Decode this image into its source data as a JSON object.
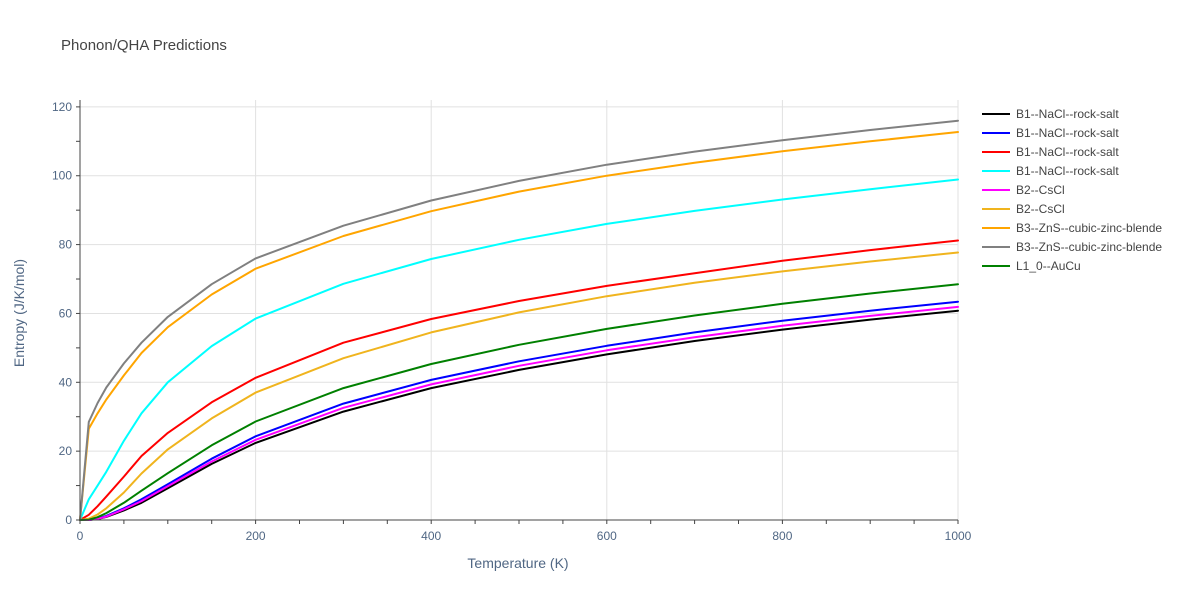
{
  "chart_data": {
    "type": "line",
    "title": "Phonon/QHA Predictions",
    "xlabel": "Temperature (K)",
    "ylabel": "Entropy (J/K/mol)",
    "xlim": [
      0,
      1000
    ],
    "ylim": [
      0,
      122
    ],
    "xticks": [
      0,
      200,
      400,
      600,
      800,
      1000
    ],
    "yticks": [
      0,
      20,
      40,
      60,
      80,
      100,
      120
    ],
    "grid": true,
    "legend_position": "right",
    "x": [
      0,
      10,
      20,
      30,
      50,
      70,
      100,
      150,
      200,
      300,
      400,
      500,
      600,
      700,
      800,
      900,
      1000
    ],
    "series": [
      {
        "name": "B1--NaCl--rock-salt",
        "color": "#000000",
        "values": [
          0,
          0,
          0.3,
          0.9,
          2.8,
          5.0,
          9.2,
          16.3,
          22.4,
          31.5,
          38.3,
          43.6,
          48.1,
          52.0,
          55.3,
          58.2,
          60.8
        ]
      },
      {
        "name": "B1--NaCl--rock-salt",
        "color": "#0000ff",
        "values": [
          0,
          0,
          0.4,
          1.2,
          3.4,
          6.0,
          10.4,
          17.8,
          24.3,
          33.8,
          40.7,
          46.1,
          50.6,
          54.5,
          57.9,
          60.8,
          63.4
        ]
      },
      {
        "name": "B1--NaCl--rock-salt",
        "color": "#ff0000",
        "values": [
          0,
          1.5,
          4.0,
          6.8,
          12.6,
          18.6,
          25.3,
          34.2,
          41.3,
          51.5,
          58.4,
          63.6,
          68.0,
          71.7,
          75.3,
          78.4,
          81.2
        ]
      },
      {
        "name": "B1--NaCl--rock-salt",
        "color": "#00ffff",
        "values": [
          0,
          6.0,
          10.0,
          14.0,
          23.0,
          31.0,
          40.0,
          50.5,
          58.5,
          68.6,
          75.8,
          81.4,
          86.0,
          89.8,
          93.1,
          96.1,
          98.9
        ]
      },
      {
        "name": "B2--CsCl",
        "color": "#ff00ff",
        "values": [
          0,
          0,
          0.35,
          1.0,
          3.1,
          5.5,
          9.8,
          17.0,
          23.3,
          32.6,
          39.4,
          44.8,
          49.3,
          53.1,
          56.4,
          59.3,
          61.9
        ]
      },
      {
        "name": "B2--CsCl",
        "color": "#f0b41e",
        "values": [
          0,
          0.4,
          1.6,
          3.4,
          8.0,
          13.5,
          20.5,
          29.5,
          37.0,
          47.0,
          54.5,
          60.3,
          65.0,
          68.9,
          72.2,
          75.1,
          77.7
        ]
      },
      {
        "name": "B3--ZnS--cubic-zinc-blende",
        "color": "#ffa500",
        "values": [
          0,
          26.5,
          31.0,
          35.0,
          42.0,
          48.5,
          56.0,
          65.5,
          73.0,
          82.5,
          89.7,
          95.4,
          100.0,
          103.8,
          107.1,
          110.0,
          112.7
        ]
      },
      {
        "name": "B3--ZnS--cubic-zinc-blende",
        "color": "#808080",
        "values": [
          0,
          28.5,
          34.0,
          38.5,
          45.5,
          51.5,
          59.0,
          68.5,
          76.0,
          85.5,
          92.8,
          98.5,
          103.2,
          107.0,
          110.3,
          113.3,
          116.0
        ]
      },
      {
        "name": "L1_0--AuCu",
        "color": "#008000",
        "values": [
          0,
          0.1,
          0.8,
          2.0,
          5.0,
          8.5,
          13.6,
          21.7,
          28.6,
          38.3,
          45.3,
          50.9,
          55.5,
          59.4,
          62.8,
          65.8,
          68.5
        ]
      }
    ]
  }
}
